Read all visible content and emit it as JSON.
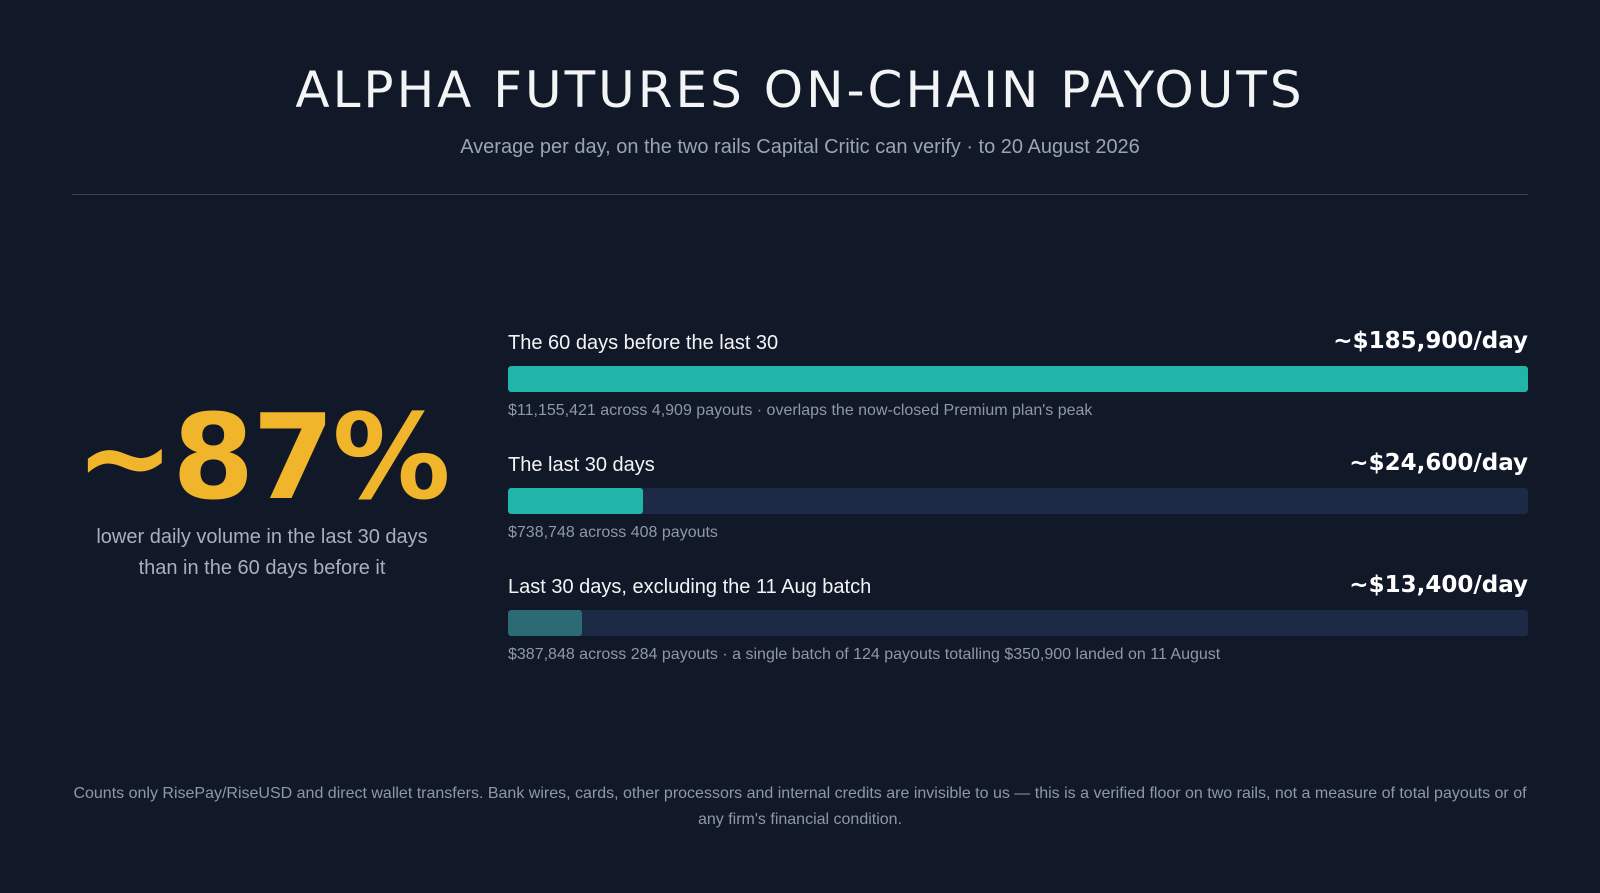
{
  "header": {
    "title": "ALPHA FUTURES ON-CHAIN PAYOUTS",
    "subtitle": "Average per day, on the two rails Capital Critic can verify · to 20 August 2026"
  },
  "headline": {
    "value": "~87%",
    "caption_line1": "lower daily volume in the last 30 days",
    "caption_line2": "than in the 60 days before it",
    "color": "#f1b52b"
  },
  "chart_data": {
    "type": "bar",
    "orientation": "horizontal",
    "xlim": [
      0,
      185900
    ],
    "categories": [
      "The 60 days before the last 30",
      "The last 30 days",
      "Last 30 days, excluding the 11 Aug batch"
    ],
    "values": [
      185900,
      24600,
      13400
    ],
    "value_labels": [
      "~$185,900/day",
      "~$24,600/day",
      "~$13,400/day"
    ],
    "notes": [
      "$11,155,421 across 4,909 payouts · overlaps the now-closed Premium plan's peak",
      "$738,748 across 408 payouts",
      "$387,848 across 284 payouts · a single batch of 124 payouts totalling $350,900 landed on 11 August"
    ],
    "colors": [
      "#1fb5a8",
      "#1fb5a8",
      "#2c6b73"
    ],
    "track_color": "#1c2a45"
  },
  "footnote": "Counts only RisePay/RiseUSD and direct wallet transfers. Bank wires, cards, other processors and internal credits are invisible to us — this is a verified floor on two rails, not a measure of total payouts or of any firm's financial condition."
}
